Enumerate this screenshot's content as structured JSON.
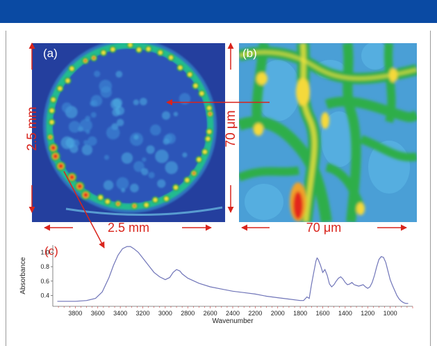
{
  "figure": {
    "panels": {
      "a": {
        "label": "(a)",
        "width_label": "2.5 mm",
        "height_label": "2.5 mm"
      },
      "b": {
        "label": "(b)",
        "width_label": "70 μm",
        "height_label": "70 μm"
      },
      "c": {
        "label": "(c)"
      }
    },
    "colors": {
      "header_bar": "#0a4aa3",
      "scale_arrow": "#d9241c",
      "spectrum_line": "#6f74b8",
      "map_background": "#243f9e",
      "map_high": "#e3261b"
    }
  },
  "chart_data": {
    "type": "line",
    "title": "",
    "xlabel": "Wavenumber",
    "ylabel": "Absorbance",
    "xlim": [
      4000,
      800
    ],
    "ylim": [
      0.25,
      1.1
    ],
    "x_ticks": [
      3800,
      3600,
      3400,
      3200,
      3000,
      2800,
      2600,
      2400,
      2200,
      2000,
      1800,
      1600,
      1400,
      1200,
      1000
    ],
    "y_ticks": [
      0.4,
      0.6,
      0.8,
      1.0
    ],
    "x_tick_labels": [
      "3800",
      "3600",
      "3400",
      "3200",
      "3000",
      "2800",
      "2600",
      "2400",
      "2200",
      "2000",
      "1800",
      "1600",
      "1400",
      "1200",
      "1000"
    ],
    "y_tick_labels": [
      "0.4",
      "0.6",
      "0.8",
      "1.0"
    ],
    "x_reversed": true,
    "grid": false,
    "series": [
      {
        "x": [
          3960,
          3800,
          3700,
          3620,
          3560,
          3500,
          3460,
          3420,
          3380,
          3340,
          3310,
          3280,
          3240,
          3200,
          3150,
          3100,
          3050,
          3000,
          2960,
          2930,
          2900,
          2870,
          2850,
          2800,
          2700,
          2600,
          2500,
          2400,
          2300,
          2200,
          2100,
          2000,
          1900,
          1800,
          1770,
          1740,
          1720,
          1700,
          1680,
          1660,
          1650,
          1640,
          1620,
          1600,
          1580,
          1560,
          1540,
          1520,
          1500,
          1480,
          1460,
          1440,
          1420,
          1400,
          1380,
          1360,
          1340,
          1320,
          1300,
          1280,
          1260,
          1240,
          1220,
          1200,
          1180,
          1160,
          1140,
          1120,
          1100,
          1080,
          1060,
          1040,
          1020,
          1000,
          980,
          960,
          940,
          920,
          900,
          880,
          860,
          840
        ],
        "y": [
          0.32,
          0.32,
          0.33,
          0.36,
          0.45,
          0.65,
          0.82,
          0.96,
          1.05,
          1.08,
          1.08,
          1.05,
          1.0,
          0.92,
          0.82,
          0.72,
          0.66,
          0.62,
          0.65,
          0.72,
          0.76,
          0.74,
          0.7,
          0.64,
          0.57,
          0.52,
          0.49,
          0.46,
          0.44,
          0.42,
          0.39,
          0.37,
          0.35,
          0.33,
          0.33,
          0.38,
          0.36,
          0.55,
          0.72,
          0.88,
          0.92,
          0.9,
          0.82,
          0.72,
          0.76,
          0.68,
          0.56,
          0.52,
          0.55,
          0.6,
          0.64,
          0.66,
          0.63,
          0.58,
          0.55,
          0.56,
          0.58,
          0.55,
          0.54,
          0.53,
          0.54,
          0.55,
          0.52,
          0.5,
          0.52,
          0.58,
          0.68,
          0.8,
          0.9,
          0.94,
          0.93,
          0.86,
          0.74,
          0.62,
          0.54,
          0.47,
          0.4,
          0.35,
          0.32,
          0.3,
          0.29,
          0.29
        ]
      }
    ]
  }
}
